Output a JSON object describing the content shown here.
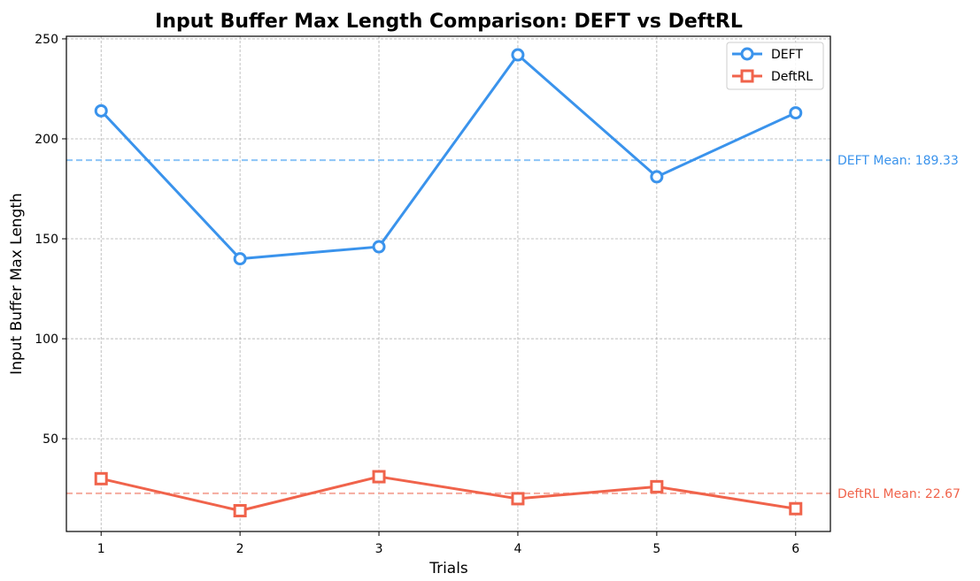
{
  "chart_data": {
    "type": "line",
    "title": "Input Buffer Max Length Comparison: DEFT vs DeftRL",
    "xlabel": "Trials",
    "ylabel": "Input Buffer Max Length",
    "x": [
      1,
      2,
      3,
      4,
      5,
      6
    ],
    "x_ticks": [
      "1",
      "2",
      "3",
      "4",
      "5",
      "6"
    ],
    "xlim": [
      0.75,
      6.25
    ],
    "ylim": [
      3.6,
      251.3
    ],
    "y_ticks": [
      50,
      100,
      150,
      200,
      250
    ],
    "y_tick_labels": [
      "50",
      "100",
      "150",
      "200",
      "250"
    ],
    "grid": true,
    "legend_position": "top-right",
    "series": [
      {
        "name": "DEFT",
        "values": [
          214,
          140,
          146,
          242,
          181,
          213
        ],
        "color": "#3a93ec",
        "marker": "circle",
        "mean": 189.33,
        "mean_label": "DEFT Mean: 189.33",
        "mean_color": "#8cc4f7"
      },
      {
        "name": "DeftRL",
        "values": [
          30,
          14,
          31,
          20,
          26,
          15
        ],
        "color": "#f0634b",
        "marker": "square",
        "mean": 22.67,
        "mean_label": "DeftRL Mean: 22.67",
        "mean_color": "#f5ab9f"
      }
    ]
  }
}
